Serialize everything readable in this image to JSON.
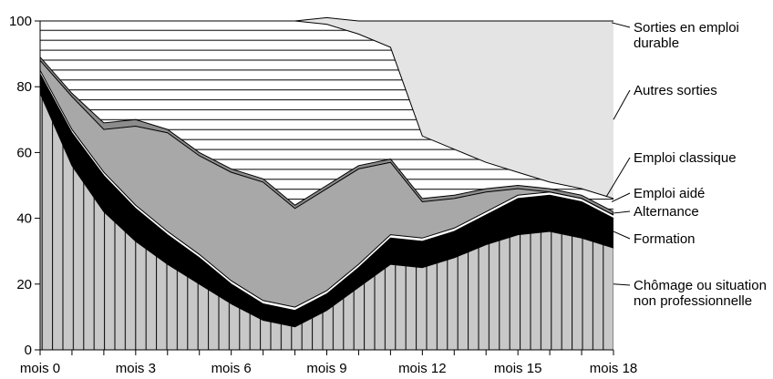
{
  "chart_data": {
    "type": "area",
    "stacked": true,
    "x": [
      0,
      1,
      2,
      3,
      4,
      5,
      6,
      7,
      8,
      9,
      10,
      11,
      12,
      13,
      14,
      15,
      16,
      17,
      18
    ],
    "x_tick_labels": [
      "mois 0",
      "mois 3",
      "mois 6",
      "mois 9",
      "mois 12",
      "mois 15",
      "mois 18"
    ],
    "x_tick_values": [
      0,
      3,
      6,
      9,
      12,
      15,
      18
    ],
    "ylim": [
      0,
      100
    ],
    "y_ticks": [
      0,
      20,
      40,
      60,
      80,
      100
    ],
    "grid": false,
    "legend_placement": "right",
    "series": [
      {
        "name": "Chômage ou situation non professionnelle",
        "fill": "#c8c8c8",
        "pattern": "vertical-lines",
        "values": [
          78,
          56,
          42,
          33,
          26,
          20,
          14,
          9,
          7,
          12,
          19,
          26,
          25,
          28,
          32,
          35,
          36,
          34,
          31
        ]
      },
      {
        "name": "Formation",
        "fill": "#000000",
        "values": [
          6,
          10,
          11,
          10,
          9,
          8,
          6,
          5,
          5,
          5,
          6,
          8,
          8,
          8,
          9,
          11,
          11,
          11,
          9
        ]
      },
      {
        "name": "Alternance",
        "fill": "#ffffff",
        "values": [
          1,
          1,
          1,
          1,
          1,
          1,
          1,
          1,
          1,
          1,
          1,
          1,
          1,
          1,
          1,
          1,
          1,
          1,
          1
        ]
      },
      {
        "name": "Emploi aidé",
        "fill": "#a8a8a8",
        "values": [
          3,
          10,
          13,
          24,
          30,
          30,
          33,
          36,
          30,
          31,
          29,
          22,
          11,
          9,
          6,
          2,
          0,
          0,
          0
        ]
      },
      {
        "name": "Emploi classique",
        "fill": "#8c8c8c",
        "values": [
          1,
          1,
          2,
          2,
          1,
          1,
          1,
          1,
          1,
          1,
          1,
          1,
          1,
          1,
          1,
          1,
          1,
          1,
          1
        ]
      },
      {
        "name": "Autres sorties",
        "fill": "#ffffff",
        "pattern": "horizontal-lines",
        "values": [
          11,
          22,
          31,
          30,
          33,
          40,
          45,
          48,
          56,
          49,
          40,
          34,
          19,
          14,
          8,
          4,
          2,
          2,
          4
        ]
      },
      {
        "name": "Sorties en emploi durable",
        "fill": "#e4e4e4",
        "values": [
          0,
          0,
          0,
          0,
          0,
          0,
          0,
          0,
          0,
          2,
          4,
          8,
          35,
          39,
          43,
          46,
          49,
          51,
          54
        ]
      }
    ]
  }
}
